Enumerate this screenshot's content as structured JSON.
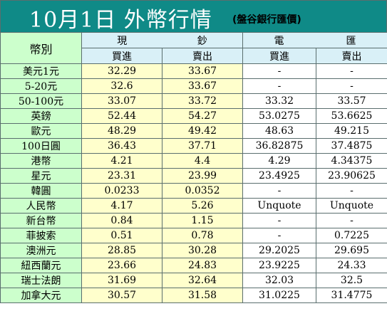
{
  "title": {
    "main": "10月1日 外幣行情",
    "sub": "(盤谷銀行匯價)"
  },
  "header": {
    "currency": "幣別",
    "cash": [
      "現",
      "鈔"
    ],
    "tt": [
      "電",
      "匯"
    ],
    "buy": "買進",
    "sell": "賣出"
  },
  "rows": [
    {
      "name": "美元1元",
      "cash_buy": "32.29",
      "cash_sell": "33.67",
      "tt_buy": "-",
      "tt_sell": "-"
    },
    {
      "name": "5-20元",
      "cash_buy": "32.6",
      "cash_sell": "33.67",
      "tt_buy": "-",
      "tt_sell": "-"
    },
    {
      "name": "50-100元",
      "cash_buy": "33.07",
      "cash_sell": "33.72",
      "tt_buy": "33.32",
      "tt_sell": "33.57"
    },
    {
      "name": "英鎊",
      "cash_buy": "52.44",
      "cash_sell": "54.27",
      "tt_buy": "53.0275",
      "tt_sell": "53.6625"
    },
    {
      "name": "歐元",
      "cash_buy": "48.29",
      "cash_sell": "49.42",
      "tt_buy": "48.63",
      "tt_sell": "49.215"
    },
    {
      "name": "100日圓",
      "cash_buy": "36.43",
      "cash_sell": "37.71",
      "tt_buy": "36.82875",
      "tt_sell": "37.4875"
    },
    {
      "name": "港幣",
      "cash_buy": "4.21",
      "cash_sell": "4.4",
      "tt_buy": "4.29",
      "tt_sell": "4.34375"
    },
    {
      "name": "星元",
      "cash_buy": "23.31",
      "cash_sell": "23.99",
      "tt_buy": "23.4925",
      "tt_sell": "23.90625"
    },
    {
      "name": "韓圓",
      "cash_buy": "0.0233",
      "cash_sell": "0.0352",
      "tt_buy": "-",
      "tt_sell": "-"
    },
    {
      "name": "人民幣",
      "cash_buy": "4.17",
      "cash_sell": "5.26",
      "tt_buy": "Unquote",
      "tt_sell": "Unquote"
    },
    {
      "name": "新台幣",
      "cash_buy": "0.84",
      "cash_sell": "1.15",
      "tt_buy": "-",
      "tt_sell": "-"
    },
    {
      "name": "菲披索",
      "cash_buy": "0.51",
      "cash_sell": "0.78",
      "tt_buy": "-",
      "tt_sell": "0.7225"
    },
    {
      "name": "澳洲元",
      "cash_buy": "28.85",
      "cash_sell": "30.28",
      "tt_buy": "29.2025",
      "tt_sell": "29.695"
    },
    {
      "name": "紐西蘭元",
      "cash_buy": "23.66",
      "cash_sell": "24.83",
      "tt_buy": "23.9225",
      "tt_sell": "24.33"
    },
    {
      "name": "瑞士法朗",
      "cash_buy": "31.69",
      "cash_sell": "32.64",
      "tt_buy": "32.03",
      "tt_sell": "32.5"
    },
    {
      "name": "加拿大元",
      "cash_buy": "30.57",
      "cash_sell": "31.58",
      "tt_buy": "31.0225",
      "tt_sell": "31.4775"
    }
  ],
  "colors": {
    "title_bg": "#0f8a87",
    "name_col": "#ccffcc",
    "cash_col": "#ffffcc",
    "header_blue": "#d9f0f7"
  }
}
